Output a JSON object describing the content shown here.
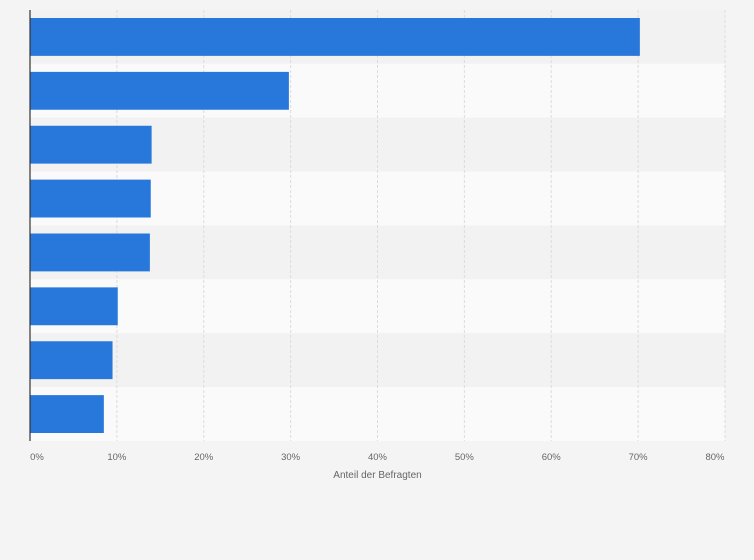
{
  "chart_data": {
    "type": "bar",
    "orientation": "horizontal",
    "categories": [
      "",
      "",
      "",
      "",
      "",
      "",
      "",
      ""
    ],
    "values": [
      70.2,
      29.8,
      14.0,
      13.9,
      13.8,
      10.1,
      9.5,
      8.5
    ],
    "xlabel": "Anteil der Befragten",
    "xlim": [
      0,
      80
    ],
    "ticks": [
      0,
      10,
      20,
      30,
      40,
      50,
      60,
      70,
      80
    ],
    "tick_labels": [
      "0%",
      "10%",
      "20%",
      "30%",
      "40%",
      "50%",
      "60%",
      "70%",
      "80%"
    ],
    "grid": true,
    "bar_color": "#2878dc",
    "band_colors": [
      "#f2f2f2",
      "#fafafa"
    ],
    "gridline_color": "#dcdcdc",
    "axis_color": "#333333"
  }
}
